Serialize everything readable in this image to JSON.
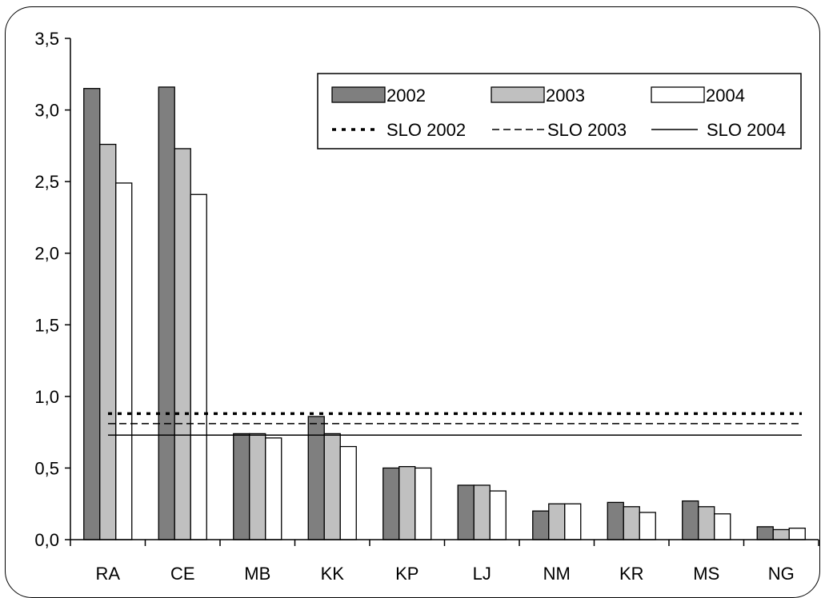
{
  "chart_data": {
    "type": "bar",
    "categories": [
      "RA",
      "CE",
      "MB",
      "KK",
      "KP",
      "LJ",
      "NM",
      "KR",
      "MS",
      "NG"
    ],
    "series": [
      {
        "name": "2002",
        "color": "#7f7f7f",
        "values": [
          3.15,
          3.16,
          0.74,
          0.86,
          0.5,
          0.38,
          0.2,
          0.26,
          0.27,
          0.09
        ]
      },
      {
        "name": "2003",
        "color": "#c0c0c0",
        "values": [
          2.76,
          2.73,
          0.74,
          0.74,
          0.51,
          0.38,
          0.25,
          0.23,
          0.23,
          0.07
        ]
      },
      {
        "name": "2004",
        "color": "#ffffff",
        "values": [
          2.49,
          2.41,
          0.71,
          0.65,
          0.5,
          0.34,
          0.25,
          0.19,
          0.18,
          0.08
        ]
      }
    ],
    "reference_lines": [
      {
        "name": "SLO 2002",
        "value": 0.88,
        "style": "dotted"
      },
      {
        "name": "SLO 2003",
        "value": 0.81,
        "style": "dashed"
      },
      {
        "name": "SLO 2004",
        "value": 0.73,
        "style": "solid"
      }
    ],
    "yticks": [
      "0,0",
      "0,5",
      "1,0",
      "1,5",
      "2,0",
      "2,5",
      "3,0",
      "3,5"
    ],
    "ytick_values": [
      0,
      0.5,
      1.0,
      1.5,
      2.0,
      2.5,
      3.0,
      3.5
    ],
    "ylim": [
      0,
      3.5
    ],
    "title": "",
    "xlabel": "",
    "ylabel": "",
    "grid": false,
    "legend_position": "top-right"
  }
}
